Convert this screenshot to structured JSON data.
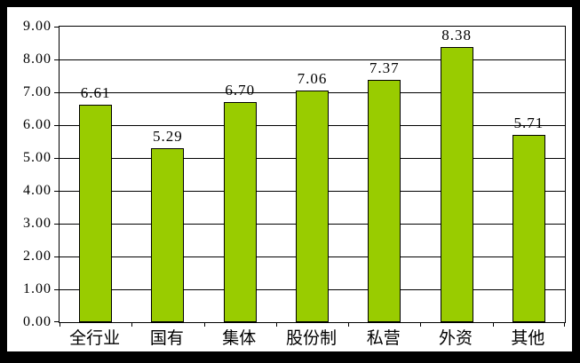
{
  "chart_data": {
    "type": "bar",
    "categories": [
      "全行业",
      "国有",
      "集体",
      "股份制",
      "私营",
      "外资",
      "其他"
    ],
    "values": [
      6.61,
      5.29,
      6.7,
      7.06,
      7.37,
      8.38,
      5.71
    ],
    "data_labels": [
      "6.61",
      "5.29",
      "6.70",
      "7.06",
      "7.37",
      "8.38",
      "5.71"
    ],
    "y_tick_labels": [
      "0.00",
      "1.00",
      "2.00",
      "3.00",
      "4.00",
      "5.00",
      "6.00",
      "7.00",
      "8.00",
      "9.00"
    ],
    "title": "",
    "xlabel": "",
    "ylabel": "",
    "ylim": [
      0,
      9
    ],
    "y_tick_step": 1,
    "grid": true,
    "legend": false,
    "colors": {
      "bar_fill": "#99CC00",
      "bar_border": "#000000",
      "gridline": "#000000",
      "text": "#000000",
      "plot_border": "#000000",
      "background": "#FFFFFF",
      "outer_frame": "#000000"
    }
  }
}
